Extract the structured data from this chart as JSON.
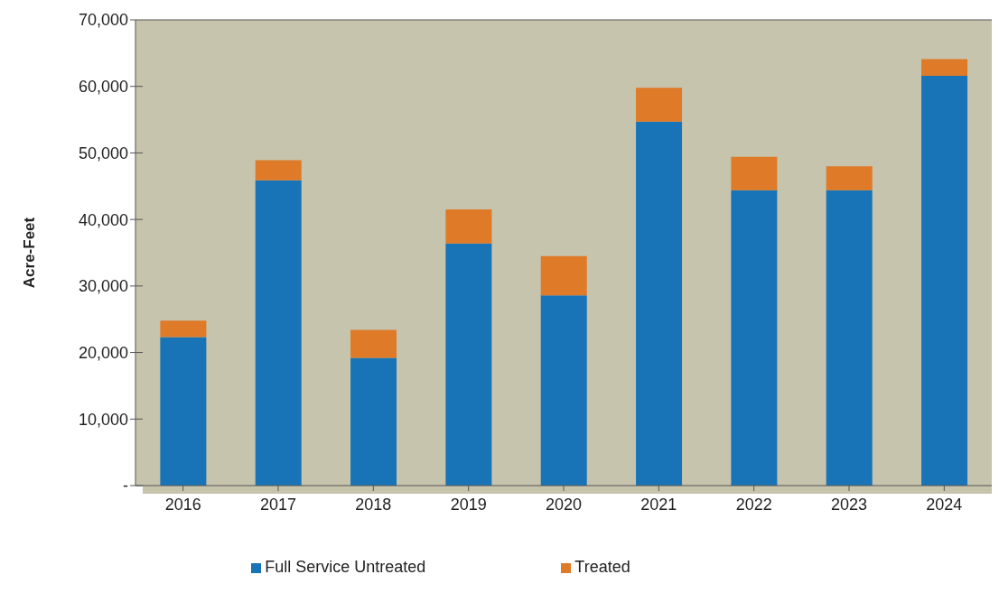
{
  "chart_data": {
    "type": "bar",
    "stacked": true,
    "ylabel": "Acre-Feet",
    "categories": [
      "2016",
      "2017",
      "2018",
      "2019",
      "2020",
      "2021",
      "2022",
      "2023",
      "2024"
    ],
    "series": [
      {
        "name": "Full Service Untreated",
        "color": "#1874b6",
        "values": [
          22300,
          45900,
          19200,
          36400,
          28600,
          54700,
          44400,
          44400,
          61600
        ]
      },
      {
        "name": "Treated",
        "color": "#de7a28",
        "values": [
          2500,
          3000,
          4200,
          5100,
          5900,
          5100,
          5000,
          3600,
          2500
        ]
      }
    ],
    "ylim": [
      0,
      70000
    ],
    "yticks": [
      {
        "value": 0,
        "label": "-"
      },
      {
        "value": 10000,
        "label": "10,000"
      },
      {
        "value": 20000,
        "label": "20,000"
      },
      {
        "value": 30000,
        "label": "30,000"
      },
      {
        "value": 40000,
        "label": "40,000"
      },
      {
        "value": 50000,
        "label": "50,000"
      },
      {
        "value": 60000,
        "label": "60,000"
      },
      {
        "value": 70000,
        "label": "70,000"
      }
    ],
    "grid": "y",
    "legend": "bottom"
  }
}
